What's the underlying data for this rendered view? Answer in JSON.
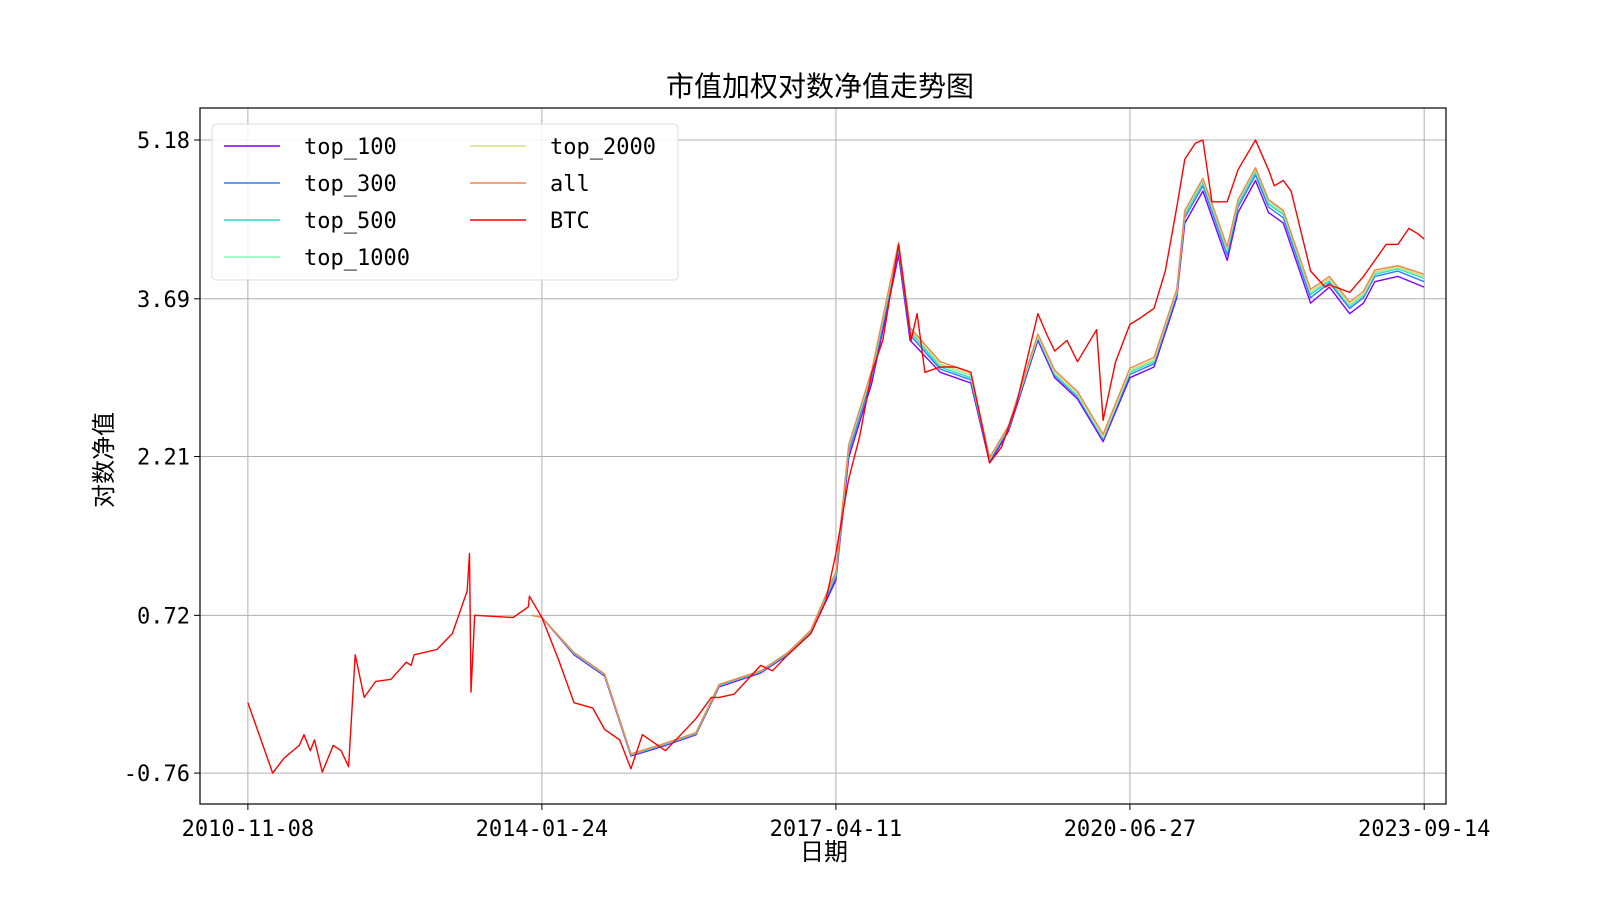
{
  "chart_data": {
    "type": "line",
    "title": "市值加权对数净值走势图",
    "xlabel": "日期",
    "ylabel": "对数净值",
    "x_ticks": [
      "2010-11-08",
      "2014-01-24",
      "2017-04-11",
      "2020-06-27",
      "2023-09-14"
    ],
    "y_ticks": [
      "-0.76",
      "0.72",
      "2.21",
      "3.69",
      "5.18"
    ],
    "xlim": [
      "2010-05-01",
      "2023-12-10"
    ],
    "ylim": [
      -1.05,
      5.48
    ],
    "grid": true,
    "legend_position": "top-left",
    "legend_columns": 2,
    "series": [
      {
        "name": "top_100",
        "color": "#8000ff",
        "x": [
          "2013-12-15",
          "2014-01-24",
          "2014-06-01",
          "2014-10-01",
          "2015-01-14",
          "2015-06-01",
          "2015-10-01",
          "2016-01-01",
          "2016-06-15",
          "2016-10-01",
          "2017-01-01",
          "2017-04-11",
          "2017-06-01",
          "2017-09-01",
          "2017-12-17",
          "2018-02-01",
          "2018-06-01",
          "2018-10-01",
          "2018-12-15",
          "2019-03-01",
          "2019-06-26",
          "2019-09-01",
          "2019-12-01",
          "2020-03-12",
          "2020-06-27",
          "2020-10-01",
          "2020-12-31",
          "2021-02-01",
          "2021-04-14",
          "2021-07-20",
          "2021-09-01",
          "2021-11-10",
          "2022-01-01",
          "2022-03-01",
          "2022-06-18",
          "2022-09-01",
          "2022-11-21",
          "2023-01-15",
          "2023-03-01",
          "2023-06-01",
          "2023-09-14"
        ],
        "y": [
          0.72,
          0.7,
          0.35,
          0.15,
          -0.6,
          -0.5,
          -0.4,
          0.05,
          0.18,
          0.35,
          0.55,
          1.05,
          2.2,
          2.9,
          4.1,
          3.3,
          3.0,
          2.9,
          2.15,
          2.45,
          3.3,
          2.95,
          2.75,
          2.35,
          2.95,
          3.05,
          3.7,
          4.4,
          4.7,
          4.05,
          4.5,
          4.8,
          4.5,
          4.4,
          3.65,
          3.8,
          3.55,
          3.65,
          3.85,
          3.9,
          3.8
        ]
      },
      {
        "name": "top_300",
        "color": "#2c7fff",
        "x": [
          "2013-12-15",
          "2014-01-24",
          "2014-06-01",
          "2014-10-01",
          "2015-01-14",
          "2015-06-01",
          "2015-10-01",
          "2016-01-01",
          "2016-06-15",
          "2016-10-01",
          "2017-01-01",
          "2017-04-11",
          "2017-06-01",
          "2017-09-01",
          "2017-12-17",
          "2018-02-01",
          "2018-06-01",
          "2018-10-01",
          "2018-12-15",
          "2019-03-01",
          "2019-06-26",
          "2019-09-01",
          "2019-12-01",
          "2020-03-12",
          "2020-06-27",
          "2020-10-01",
          "2020-12-31",
          "2021-02-01",
          "2021-04-14",
          "2021-07-20",
          "2021-09-01",
          "2021-11-10",
          "2022-01-01",
          "2022-03-01",
          "2022-06-18",
          "2022-09-01",
          "2022-11-21",
          "2023-01-15",
          "2023-03-01",
          "2023-06-01",
          "2023-09-14"
        ],
        "y": [
          0.72,
          0.7,
          0.36,
          0.16,
          -0.59,
          -0.49,
          -0.39,
          0.06,
          0.19,
          0.36,
          0.56,
          1.08,
          2.25,
          2.95,
          4.15,
          3.35,
          3.03,
          2.93,
          2.17,
          2.47,
          3.32,
          2.97,
          2.77,
          2.37,
          2.98,
          3.08,
          3.73,
          4.45,
          4.75,
          4.1,
          4.55,
          4.85,
          4.55,
          4.45,
          3.7,
          3.84,
          3.6,
          3.7,
          3.9,
          3.95,
          3.85
        ]
      },
      {
        "name": "top_500",
        "color": "#28d8c8",
        "x": [
          "2013-12-15",
          "2014-01-24",
          "2014-06-01",
          "2014-10-01",
          "2015-01-14",
          "2015-06-01",
          "2015-10-01",
          "2016-01-01",
          "2016-06-15",
          "2016-10-01",
          "2017-01-01",
          "2017-04-11",
          "2017-06-01",
          "2017-09-01",
          "2017-12-17",
          "2018-02-01",
          "2018-06-01",
          "2018-10-01",
          "2018-12-15",
          "2019-03-01",
          "2019-06-26",
          "2019-09-01",
          "2019-12-01",
          "2020-03-12",
          "2020-06-27",
          "2020-10-01",
          "2020-12-31",
          "2021-02-01",
          "2021-04-14",
          "2021-07-20",
          "2021-09-01",
          "2021-11-10",
          "2022-01-01",
          "2022-03-01",
          "2022-06-18",
          "2022-09-01",
          "2022-11-21",
          "2023-01-15",
          "2023-03-01",
          "2023-06-01",
          "2023-09-14"
        ],
        "y": [
          0.72,
          0.7,
          0.36,
          0.16,
          -0.59,
          -0.49,
          -0.39,
          0.06,
          0.19,
          0.36,
          0.57,
          1.1,
          2.28,
          2.98,
          4.18,
          3.38,
          3.05,
          2.95,
          2.18,
          2.48,
          3.33,
          2.98,
          2.78,
          2.38,
          3.0,
          3.1,
          3.75,
          4.48,
          4.78,
          4.13,
          4.58,
          4.88,
          4.58,
          4.48,
          3.73,
          3.86,
          3.62,
          3.72,
          3.92,
          3.97,
          3.88
        ]
      },
      {
        "name": "top_1000",
        "color": "#80ffb4",
        "x": [
          "2013-12-15",
          "2014-01-24",
          "2014-06-01",
          "2014-10-01",
          "2015-01-14",
          "2015-06-01",
          "2015-10-01",
          "2016-01-01",
          "2016-06-15",
          "2016-10-01",
          "2017-01-01",
          "2017-04-11",
          "2017-06-01",
          "2017-09-01",
          "2017-12-17",
          "2018-02-01",
          "2018-06-01",
          "2018-10-01",
          "2018-12-15",
          "2019-03-01",
          "2019-06-26",
          "2019-09-01",
          "2019-12-01",
          "2020-03-12",
          "2020-06-27",
          "2020-10-01",
          "2020-12-31",
          "2021-02-01",
          "2021-04-14",
          "2021-07-20",
          "2021-09-01",
          "2021-11-10",
          "2022-01-01",
          "2022-03-01",
          "2022-06-18",
          "2022-09-01",
          "2022-11-21",
          "2023-01-15",
          "2023-03-01",
          "2023-06-01",
          "2023-09-14"
        ],
        "y": [
          0.72,
          0.7,
          0.37,
          0.17,
          -0.58,
          -0.48,
          -0.38,
          0.07,
          0.2,
          0.37,
          0.58,
          1.12,
          2.3,
          3.0,
          4.2,
          3.4,
          3.07,
          2.97,
          2.19,
          2.49,
          3.34,
          2.99,
          2.79,
          2.39,
          3.01,
          3.11,
          3.76,
          4.5,
          4.8,
          4.15,
          4.6,
          4.9,
          4.6,
          4.5,
          3.75,
          3.87,
          3.63,
          3.73,
          3.93,
          3.98,
          3.89
        ]
      },
      {
        "name": "top_2000",
        "color": "#d4dd80",
        "x": [
          "2013-12-15",
          "2014-01-24",
          "2014-06-01",
          "2014-10-01",
          "2015-01-14",
          "2015-06-01",
          "2015-10-01",
          "2016-01-01",
          "2016-06-15",
          "2016-10-01",
          "2017-01-01",
          "2017-04-11",
          "2017-06-01",
          "2017-09-01",
          "2017-12-17",
          "2018-02-01",
          "2018-06-01",
          "2018-10-01",
          "2018-12-15",
          "2019-03-01",
          "2019-06-26",
          "2019-09-01",
          "2019-12-01",
          "2020-03-12",
          "2020-06-27",
          "2020-10-01",
          "2020-12-31",
          "2021-02-01",
          "2021-04-14",
          "2021-07-20",
          "2021-09-01",
          "2021-11-10",
          "2022-01-01",
          "2022-03-01",
          "2022-06-18",
          "2022-09-01",
          "2022-11-21",
          "2023-01-15",
          "2023-03-01",
          "2023-06-01",
          "2023-09-14"
        ],
        "y": [
          0.72,
          0.7,
          0.37,
          0.17,
          -0.58,
          -0.48,
          -0.38,
          0.07,
          0.2,
          0.37,
          0.58,
          1.13,
          2.31,
          3.01,
          4.21,
          3.41,
          3.08,
          2.98,
          2.2,
          2.5,
          3.35,
          3.0,
          2.8,
          2.4,
          3.02,
          3.12,
          3.77,
          4.51,
          4.81,
          4.16,
          4.61,
          4.91,
          4.61,
          4.51,
          3.76,
          3.88,
          3.64,
          3.74,
          3.94,
          3.99,
          3.9
        ]
      },
      {
        "name": "all",
        "color": "#f0864a",
        "x": [
          "2013-12-15",
          "2014-01-24",
          "2014-06-01",
          "2014-10-01",
          "2015-01-14",
          "2015-06-01",
          "2015-10-01",
          "2016-01-01",
          "2016-06-15",
          "2016-10-01",
          "2017-01-01",
          "2017-04-11",
          "2017-06-01",
          "2017-09-01",
          "2017-12-17",
          "2018-02-01",
          "2018-06-01",
          "2018-10-01",
          "2018-12-15",
          "2019-03-01",
          "2019-06-26",
          "2019-09-01",
          "2019-12-01",
          "2020-03-12",
          "2020-06-27",
          "2020-10-01",
          "2020-12-31",
          "2021-02-01",
          "2021-04-14",
          "2021-07-20",
          "2021-09-01",
          "2021-11-10",
          "2022-01-01",
          "2022-03-01",
          "2022-06-18",
          "2022-09-01",
          "2022-11-21",
          "2023-01-15",
          "2023-03-01",
          "2023-06-01",
          "2023-09-14"
        ],
        "y": [
          0.72,
          0.7,
          0.37,
          0.17,
          -0.58,
          -0.48,
          -0.38,
          0.07,
          0.2,
          0.37,
          0.58,
          1.13,
          2.32,
          3.02,
          4.22,
          3.42,
          3.1,
          3.0,
          2.2,
          2.5,
          3.36,
          3.02,
          2.82,
          2.42,
          3.04,
          3.14,
          3.78,
          4.52,
          4.82,
          4.18,
          4.62,
          4.92,
          4.62,
          4.52,
          3.78,
          3.9,
          3.66,
          3.76,
          3.96,
          4.0,
          3.92
        ]
      },
      {
        "name": "BTC",
        "color": "#ff0000",
        "x": [
          "2010-11-08",
          "2011-02-15",
          "2011-04-01",
          "2011-06-01",
          "2011-06-20",
          "2011-07-15",
          "2011-08-01",
          "2011-09-01",
          "2011-10-15",
          "2011-11-15",
          "2011-12-15",
          "2012-01-10",
          "2012-02-15",
          "2012-04-01",
          "2012-06-01",
          "2012-08-01",
          "2012-08-20",
          "2012-09-01",
          "2012-12-01",
          "2013-02-01",
          "2013-04-01",
          "2013-04-10",
          "2013-04-16",
          "2013-05-01",
          "2013-10-01",
          "2013-12-01",
          "2013-12-05",
          "2014-01-24",
          "2014-04-01",
          "2014-06-01",
          "2014-08-15",
          "2014-10-01",
          "2014-12-01",
          "2015-01-14",
          "2015-03-01",
          "2015-06-01",
          "2015-08-01",
          "2015-10-01",
          "2015-12-01",
          "2016-01-01",
          "2016-03-01",
          "2016-06-15",
          "2016-08-01",
          "2016-10-01",
          "2017-01-01",
          "2017-03-01",
          "2017-04-11",
          "2017-06-01",
          "2017-07-15",
          "2017-09-01",
          "2017-10-15",
          "2017-12-17",
          "2018-02-05",
          "2018-03-01",
          "2018-04-01",
          "2018-06-01",
          "2018-08-01",
          "2018-10-01",
          "2018-11-15",
          "2018-12-15",
          "2019-02-01",
          "2019-04-01",
          "2019-06-26",
          "2019-08-01",
          "2019-09-01",
          "2019-10-20",
          "2019-12-01",
          "2020-02-15",
          "2020-03-12",
          "2020-05-01",
          "2020-06-27",
          "2020-08-01",
          "2020-10-01",
          "2020-11-15",
          "2020-12-31",
          "2021-02-01",
          "2021-03-15",
          "2021-04-14",
          "2021-05-20",
          "2021-07-20",
          "2021-09-01",
          "2021-11-10",
          "2022-01-01",
          "2022-01-24",
          "2022-03-01",
          "2022-04-01",
          "2022-06-18",
          "2022-08-15",
          "2022-09-01",
          "2022-11-21",
          "2023-01-15",
          "2023-03-01",
          "2023-04-15",
          "2023-06-01",
          "2023-07-15",
          "2023-08-20",
          "2023-09-14"
        ],
        "y": [
          -0.1,
          -0.76,
          -0.62,
          -0.5,
          -0.4,
          -0.55,
          -0.45,
          -0.75,
          -0.5,
          -0.55,
          -0.7,
          0.35,
          -0.05,
          0.1,
          0.12,
          0.28,
          0.25,
          0.35,
          0.4,
          0.55,
          0.95,
          1.3,
          0.0,
          0.72,
          0.7,
          0.8,
          0.9,
          0.7,
          0.3,
          -0.1,
          -0.15,
          -0.35,
          -0.45,
          -0.72,
          -0.4,
          -0.55,
          -0.4,
          -0.25,
          -0.05,
          -0.05,
          -0.02,
          0.25,
          0.2,
          0.35,
          0.55,
          0.85,
          1.3,
          2.0,
          2.4,
          3.0,
          3.3,
          4.2,
          3.3,
          3.55,
          3.0,
          3.05,
          3.05,
          3.0,
          2.5,
          2.15,
          2.3,
          2.7,
          3.55,
          3.35,
          3.2,
          3.3,
          3.1,
          3.4,
          2.55,
          3.1,
          3.45,
          3.5,
          3.6,
          3.95,
          4.55,
          5.0,
          5.15,
          5.18,
          4.6,
          4.6,
          4.9,
          5.18,
          4.9,
          4.75,
          4.8,
          4.7,
          3.95,
          3.8,
          3.82,
          3.75,
          3.9,
          4.05,
          4.2,
          4.2,
          4.35,
          4.3,
          4.25
        ]
      }
    ]
  }
}
